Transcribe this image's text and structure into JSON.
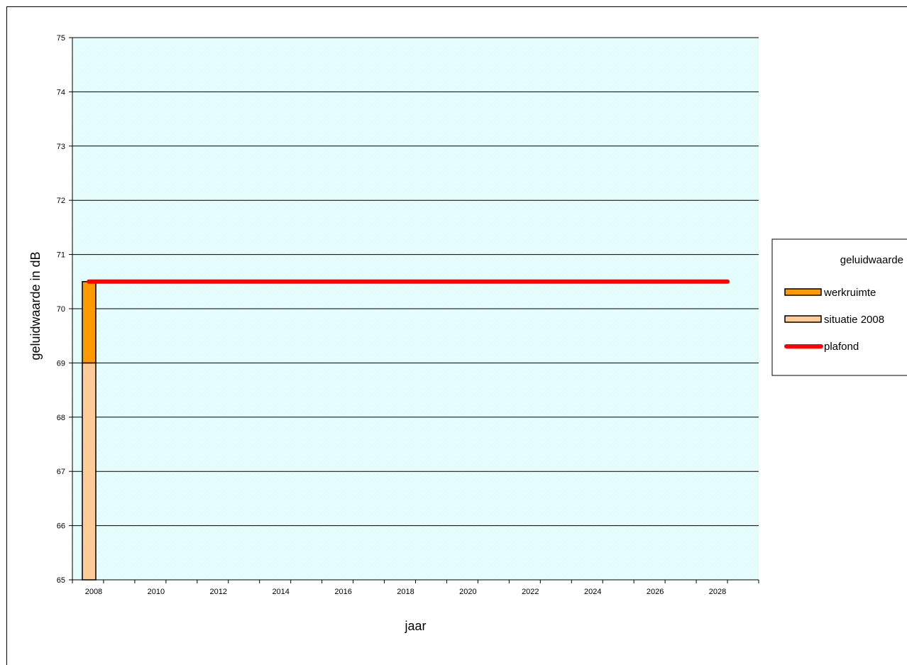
{
  "chart_data": {
    "type": "bar",
    "xlabel": "jaar",
    "ylabel": "geluidwaarde in dB",
    "ylim": [
      65,
      75
    ],
    "yticks": [
      65,
      66,
      67,
      68,
      69,
      70,
      71,
      72,
      73,
      74,
      75
    ],
    "x_ticks": [
      "2008",
      "2010",
      "2012",
      "2014",
      "2016",
      "2018",
      "2020",
      "2022",
      "2024",
      "2026",
      "2028"
    ],
    "grid": "horizontal",
    "background": "light cyan dotted",
    "stacked_bars": [
      {
        "x": "2008",
        "segments": [
          {
            "series": "situatie 2008",
            "from": 65,
            "to": 69
          },
          {
            "series": "werkruimte",
            "from": 69,
            "to": 70.5
          }
        ]
      }
    ],
    "lines": [
      {
        "series": "plafond",
        "x": [
          "2008",
          "2028"
        ],
        "y": [
          70.5,
          70.5
        ]
      }
    ],
    "legend": {
      "title": "geluidwaarde",
      "position": "right",
      "items": [
        {
          "name": "werkruimte",
          "kind": "bar",
          "color": "#FF9900"
        },
        {
          "name": "situatie 2008",
          "kind": "bar",
          "color": "#FFCC99"
        },
        {
          "name": "plafond",
          "kind": "line",
          "color": "#FF0000"
        }
      ]
    },
    "colors": {
      "plot_background": "#E6FFFF",
      "grid": "#000000",
      "werkruimte": "#FF9900",
      "situatie_2008": "#FFCC99",
      "plafond": "#FF0000"
    }
  }
}
